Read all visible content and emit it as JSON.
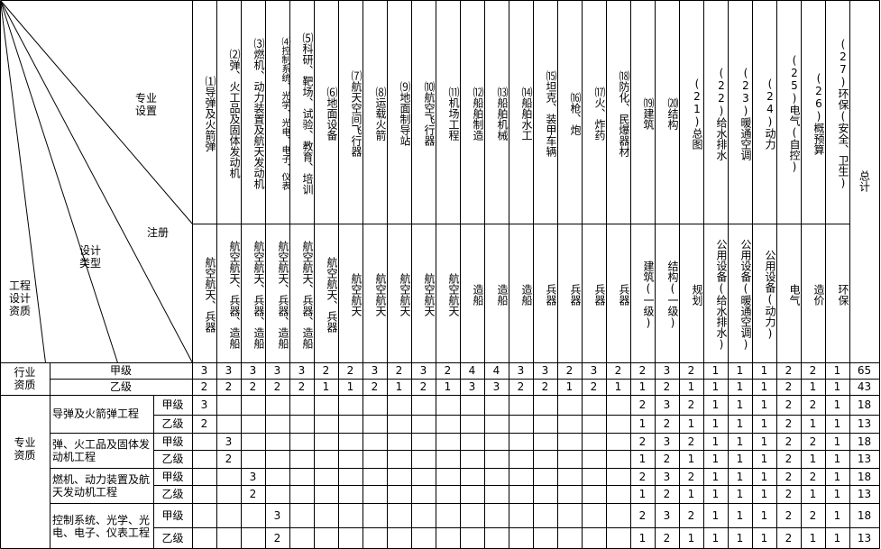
{
  "corner": {
    "specialty": "专业设置",
    "registration": "注册",
    "design_type": "设计类型",
    "qualification": "工程设计资质"
  },
  "specialties": [
    "⑴导弹及火箭弹",
    "⑵弹、火工品及固体发动机",
    "⑶燃机、动力装置及航天发动机",
    "⑷控制系统、光学、光电、电子、仪表",
    "⑸科研、靶场、试验、教育、培训",
    "⑹地面设备",
    "⑺航天空间飞行器",
    "⑻运载火箭",
    "⑼地面制导站",
    "⑽航空飞行器",
    "⑾机场工程",
    "⑿船舶制造",
    "⒀船舶机械",
    "⒁船舶水工",
    "⒂坦克、装甲车辆",
    "⒃枪、炮",
    "⒄火、炸药",
    "⒅防化、民爆器材",
    "⒆建筑",
    "⒇结构",
    "(21)总图",
    "(22)给水排水",
    "(23)暖通空调",
    "(24)动力",
    "(25)电气(自控)",
    "(26)概预算",
    "(27)环保(安全、卫生)"
  ],
  "total_header": "总计",
  "registrations": [
    "航空航天、兵器",
    "航空航天、兵器、造船",
    "航空航天、兵器、造船",
    "航空航天、兵器、造船",
    "航空航天、兵器、造船",
    "航空航天、兵器",
    "航空航天",
    "航空航天",
    "航空航天",
    "航空航天",
    "航空航天",
    "造船",
    "造船",
    "造船",
    "兵器",
    "兵器",
    "兵器",
    "兵器",
    "建筑(一级)",
    "结构(一级)",
    "规划",
    "公用设备(给水排水)",
    "公用设备(暖通空调)",
    "公用设备(动力)",
    "电气",
    "造价",
    "环保"
  ],
  "industry": {
    "label": "行业资质",
    "rows": [
      {
        "grade": "甲级",
        "values": [
          3,
          3,
          3,
          3,
          3,
          2,
          2,
          3,
          2,
          3,
          2,
          4,
          4,
          3,
          3,
          2,
          3,
          2,
          2,
          3,
          2,
          1,
          1,
          1,
          2,
          2,
          1
        ],
        "total": 65
      },
      {
        "grade": "乙级",
        "values": [
          2,
          2,
          2,
          2,
          2,
          1,
          1,
          2,
          1,
          2,
          1,
          3,
          3,
          2,
          2,
          1,
          2,
          1,
          1,
          2,
          1,
          1,
          1,
          1,
          2,
          1,
          1
        ],
        "total": 43
      }
    ]
  },
  "professional": {
    "label": "专业资质",
    "groups": [
      {
        "name": "导弹及火箭弹工程",
        "rows": [
          {
            "grade": "甲级",
            "values": [
              3,
              null,
              null,
              null,
              null,
              null,
              null,
              null,
              null,
              null,
              null,
              null,
              null,
              null,
              null,
              null,
              null,
              null,
              2,
              3,
              2,
              1,
              1,
              1,
              2,
              2,
              1
            ],
            "total": 18
          },
          {
            "grade": "乙级",
            "values": [
              2,
              null,
              null,
              null,
              null,
              null,
              null,
              null,
              null,
              null,
              null,
              null,
              null,
              null,
              null,
              null,
              null,
              null,
              1,
              2,
              1,
              1,
              1,
              1,
              2,
              1,
              1
            ],
            "total": 13
          }
        ]
      },
      {
        "name": "弹、火工品及固体发动机工程",
        "rows": [
          {
            "grade": "甲级",
            "values": [
              null,
              3,
              null,
              null,
              null,
              null,
              null,
              null,
              null,
              null,
              null,
              null,
              null,
              null,
              null,
              null,
              null,
              null,
              2,
              3,
              2,
              1,
              1,
              1,
              2,
              2,
              1
            ],
            "total": 18
          },
          {
            "grade": "乙级",
            "values": [
              null,
              2,
              null,
              null,
              null,
              null,
              null,
              null,
              null,
              null,
              null,
              null,
              null,
              null,
              null,
              null,
              null,
              null,
              1,
              2,
              1,
              1,
              1,
              1,
              2,
              1,
              1
            ],
            "total": 13
          }
        ]
      },
      {
        "name": "燃机、动力装置及航天发动机工程",
        "rows": [
          {
            "grade": "甲级",
            "values": [
              null,
              null,
              3,
              null,
              null,
              null,
              null,
              null,
              null,
              null,
              null,
              null,
              null,
              null,
              null,
              null,
              null,
              null,
              2,
              3,
              2,
              1,
              1,
              1,
              2,
              2,
              1
            ],
            "total": 18
          },
          {
            "grade": "乙级",
            "values": [
              null,
              null,
              2,
              null,
              null,
              null,
              null,
              null,
              null,
              null,
              null,
              null,
              null,
              null,
              null,
              null,
              null,
              null,
              1,
              2,
              1,
              1,
              1,
              1,
              2,
              1,
              1
            ],
            "total": 13
          }
        ]
      },
      {
        "name": "控制系统、光学、光电、电子、仪表工程",
        "rows": [
          {
            "grade": "甲级",
            "values": [
              null,
              null,
              null,
              3,
              null,
              null,
              null,
              null,
              null,
              null,
              null,
              null,
              null,
              null,
              null,
              null,
              null,
              null,
              2,
              3,
              2,
              1,
              1,
              1,
              2,
              2,
              1
            ],
            "total": 18
          },
          {
            "grade": "乙级",
            "values": [
              null,
              null,
              null,
              2,
              null,
              null,
              null,
              null,
              null,
              null,
              null,
              null,
              null,
              null,
              null,
              null,
              null,
              null,
              1,
              2,
              1,
              1,
              1,
              1,
              2,
              1,
              1
            ],
            "total": 13
          }
        ]
      }
    ]
  }
}
